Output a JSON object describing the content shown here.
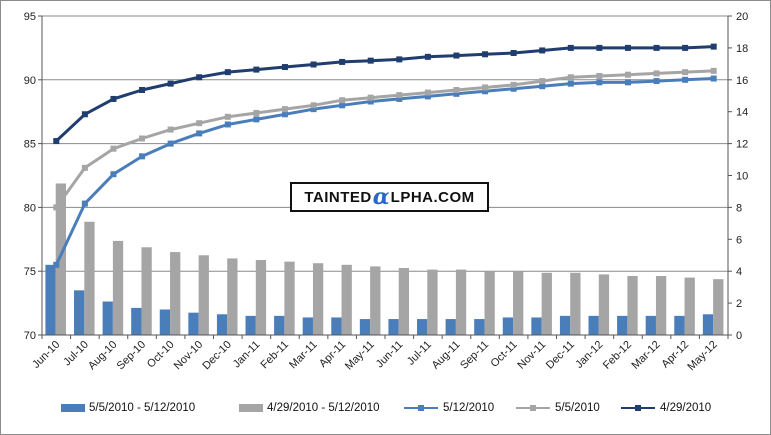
{
  "watermark": {
    "part1": "TAINTED",
    "alpha": "α",
    "part2": "LPHA.COM"
  },
  "chart_data": {
    "type": "bar",
    "categories": [
      "Jun-10",
      "Jul-10",
      "Aug-10",
      "Sep-10",
      "Oct-10",
      "Nov-10",
      "Dec-10",
      "Jan-11",
      "Feb-11",
      "Mar-11",
      "Apr-11",
      "May-11",
      "Jun-11",
      "Jul-11",
      "Aug-11",
      "Sep-11",
      "Oct-11",
      "Nov-11",
      "Dec-11",
      "Jan-12",
      "Feb-12",
      "Mar-12",
      "Apr-12",
      "May-12"
    ],
    "left_axis": {
      "min": 70,
      "max": 95,
      "ticks": [
        70,
        75,
        80,
        85,
        90,
        95
      ]
    },
    "right_axis": {
      "min": 0,
      "max": 20,
      "ticks": [
        0,
        2,
        4,
        6,
        8,
        10,
        12,
        14,
        16,
        18,
        20
      ]
    },
    "grid": true,
    "legend_position": "bottom",
    "series": [
      {
        "name": "5/5/2010 - 5/12/2010",
        "kind": "bar",
        "axis": "right",
        "color": "#4a7ebb",
        "values": [
          4.4,
          2.8,
          2.1,
          1.7,
          1.6,
          1.4,
          1.3,
          1.2,
          1.2,
          1.1,
          1.1,
          1.0,
          1.0,
          1.0,
          1.0,
          1.0,
          1.1,
          1.1,
          1.2,
          1.2,
          1.2,
          1.2,
          1.2,
          1.3
        ]
      },
      {
        "name": "4/29/2010 - 5/12/2010",
        "kind": "bar",
        "axis": "right",
        "color": "#a5a5a5",
        "values": [
          9.5,
          7.1,
          5.9,
          5.5,
          5.2,
          5.0,
          4.8,
          4.7,
          4.6,
          4.5,
          4.4,
          4.3,
          4.2,
          4.1,
          4.1,
          4.0,
          4.0,
          3.9,
          3.9,
          3.8,
          3.7,
          3.7,
          3.6,
          3.5
        ]
      },
      {
        "name": "5/12/2010",
        "kind": "line",
        "axis": "left",
        "color": "#4a7ebb",
        "values": [
          75.5,
          80.3,
          82.6,
          84.0,
          85.0,
          85.8,
          86.5,
          86.9,
          87.3,
          87.7,
          88.0,
          88.3,
          88.5,
          88.7,
          88.9,
          89.1,
          89.3,
          89.5,
          89.7,
          89.8,
          89.8,
          89.9,
          90.0,
          90.1
        ]
      },
      {
        "name": "5/5/2010",
        "kind": "line",
        "axis": "left",
        "color": "#a5a5a5",
        "values": [
          80.0,
          83.1,
          84.6,
          85.4,
          86.1,
          86.6,
          87.1,
          87.4,
          87.7,
          88.0,
          88.4,
          88.6,
          88.8,
          89.0,
          89.2,
          89.4,
          89.6,
          89.9,
          90.2,
          90.3,
          90.4,
          90.5,
          90.6,
          90.7
        ]
      },
      {
        "name": "4/29/2010",
        "kind": "line",
        "axis": "left",
        "color": "#1f3d6e",
        "values": [
          85.2,
          87.3,
          88.5,
          89.2,
          89.7,
          90.2,
          90.6,
          90.8,
          91.0,
          91.2,
          91.4,
          91.5,
          91.6,
          91.8,
          91.9,
          92.0,
          92.1,
          92.3,
          92.5,
          92.5,
          92.5,
          92.5,
          92.5,
          92.6
        ]
      }
    ]
  }
}
